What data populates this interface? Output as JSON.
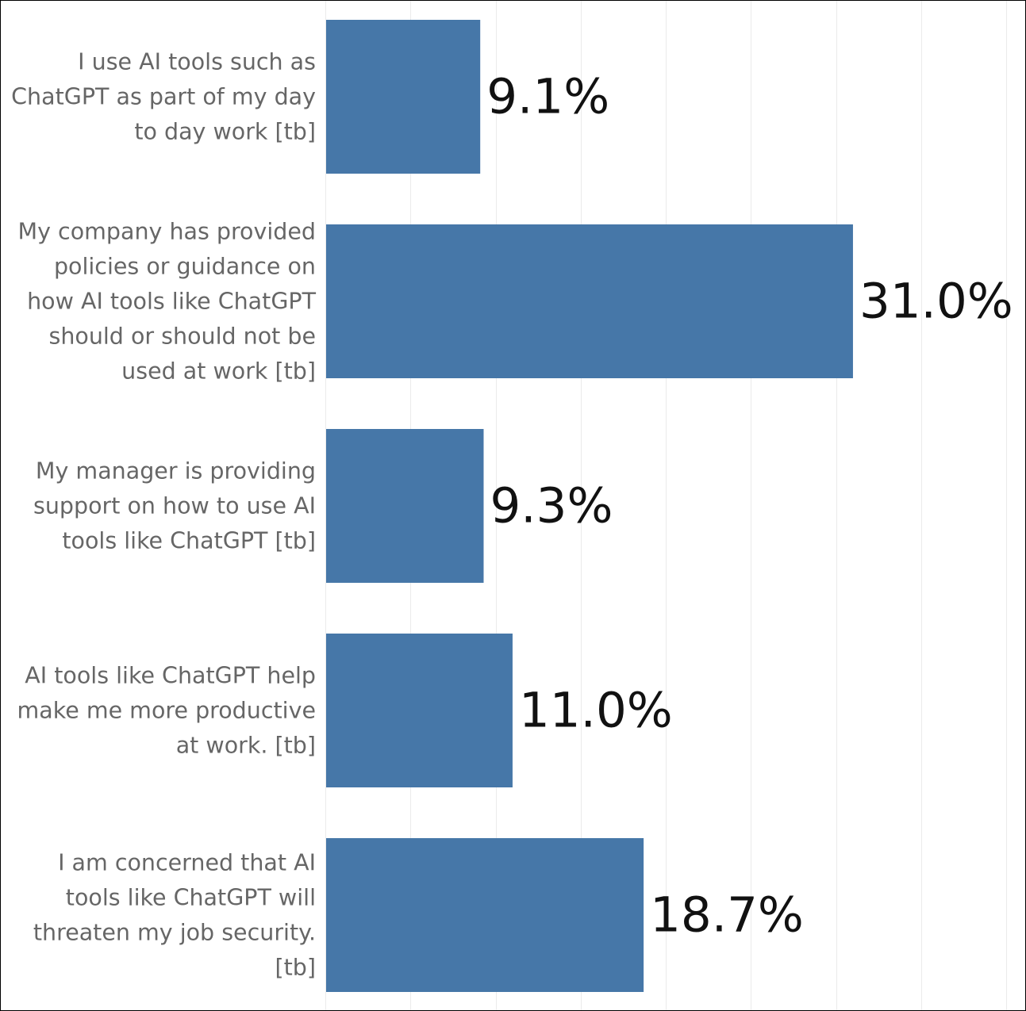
{
  "chart_data": {
    "type": "bar",
    "orientation": "horizontal",
    "categories": [
      [
        "I use AI tools such as",
        "ChatGPT as part of my day",
        "to day work [tb]"
      ],
      [
        "My company has provided",
        "policies or guidance on",
        "how AI tools like ChatGPT",
        "should or should not be",
        "used at work [tb]"
      ],
      [
        "My manager is providing",
        "support on how to use AI",
        "tools like ChatGPT [tb]"
      ],
      [
        "AI tools like ChatGPT help",
        "make me more productive",
        "at work. [tb]"
      ],
      [
        "I am concerned that AI",
        "tools like ChatGPT will",
        "threaten my job security.",
        "[tb]"
      ]
    ],
    "values": [
      9.1,
      31.0,
      9.3,
      11.0,
      18.7
    ],
    "value_labels": [
      "9.1%",
      "31.0%",
      "9.3%",
      "11.0%",
      "18.7%"
    ],
    "xlim": [
      0,
      40
    ],
    "grid": true,
    "bar_color": "#4677a8",
    "grid_color": "#ebebeb"
  }
}
